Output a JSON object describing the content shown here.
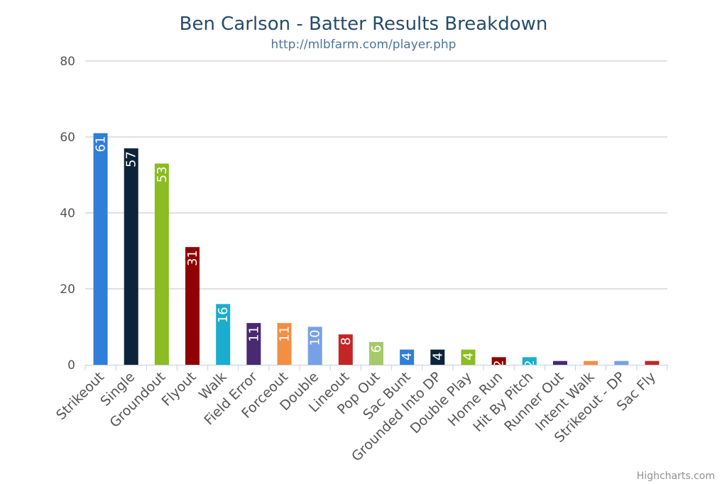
{
  "chart_data": {
    "type": "bar",
    "title": "Ben Carlson - Batter Results Breakdown",
    "subtitle": "http://mlbfarm.com/player.php",
    "categories": [
      "Strikeout",
      "Single",
      "Groundout",
      "Flyout",
      "Walk",
      "Field Error",
      "Forceout",
      "Double",
      "Lineout",
      "Pop Out",
      "Sac Bunt",
      "Grounded Into DP",
      "Double Play",
      "Home Run",
      "Hit By Pitch",
      "Runner Out",
      "Intent Walk",
      "Strikeout - DP",
      "Sac Fly"
    ],
    "values": [
      61,
      57,
      53,
      31,
      16,
      11,
      11,
      10,
      8,
      6,
      4,
      4,
      4,
      2,
      2,
      1,
      1,
      1,
      1
    ],
    "colors": [
      "#2f7ed8",
      "#0d233a",
      "#8bbc21",
      "#910000",
      "#1aadce",
      "#492970",
      "#f28f43",
      "#77a1e5",
      "#c42525",
      "#a6c96a",
      "#2f7ed8",
      "#0d233a",
      "#8bbc21",
      "#910000",
      "#1aadce",
      "#492970",
      "#f28f43",
      "#77a1e5",
      "#c42525"
    ],
    "ylim": [
      0,
      80
    ],
    "yticks": [
      0,
      20,
      40,
      60,
      80
    ],
    "xlabel": "",
    "ylabel": "",
    "grid": true,
    "legend": "none",
    "data_labels": "inside-rotated"
  },
  "credits": "Highcharts.com"
}
